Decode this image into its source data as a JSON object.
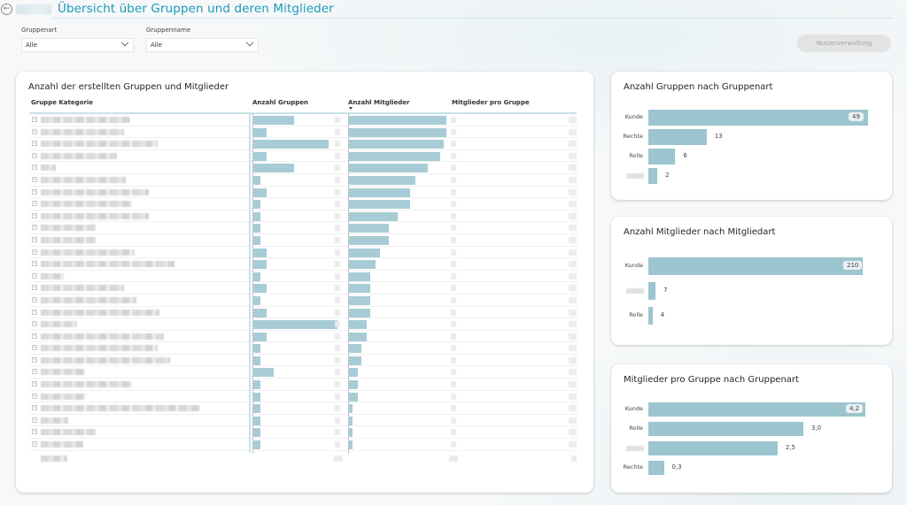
{
  "header": {
    "title": "Übersicht über Gruppen und deren Mitglieder",
    "back_icon": "back-arrow-circle-icon"
  },
  "filters": [
    {
      "label": "Gruppenart",
      "value": "Alle"
    },
    {
      "label": "Gruppenname",
      "value": "Alle"
    }
  ],
  "user_management_button": "Nutzerverwaltung",
  "colors": {
    "accent": "#1a9bbb",
    "bar": "#9cc5cf",
    "table_bar": "#a8ccd6",
    "button_disabled_bg": "#e3e3e3"
  },
  "table": {
    "title": "Anzahl der erstellten Gruppen und Mitglieder",
    "columns": [
      "Gruppe Kategorie",
      "Anzahl Gruppen",
      "Anzahl Mitglieder",
      "Mitglieder pro Gruppe"
    ],
    "sorted_column": "Anzahl Mitglieder",
    "sort_direction": "descending",
    "names_redacted": true,
    "values_redacted": true,
    "rows_relative": {
      "note": "bar lengths relative to column max (0-1)",
      "anzahl_gruppen": [
        0.48,
        0.16,
        0.89,
        0.16,
        0.48,
        0.08,
        0.16,
        0.08,
        0.08,
        0.08,
        0.08,
        0.16,
        0.16,
        0.08,
        0.16,
        0.08,
        0.16,
        1.0,
        0.16,
        0.08,
        0.08,
        0.24,
        0.08,
        0.08,
        0.08,
        0.08,
        0.08,
        0.08
      ],
      "anzahl_mitglieder": [
        1.0,
        1.0,
        0.97,
        0.94,
        0.81,
        0.68,
        0.63,
        0.63,
        0.5,
        0.41,
        0.41,
        0.32,
        0.27,
        0.22,
        0.22,
        0.22,
        0.22,
        0.18,
        0.18,
        0.13,
        0.13,
        0.09,
        0.09,
        0.09,
        0.04,
        0.04,
        0.04,
        0.04
      ]
    },
    "name_widths": [
      0.42,
      0.39,
      0.55,
      0.36,
      0.07,
      0.4,
      0.51,
      0.43,
      0.51,
      0.26,
      0.26,
      0.44,
      0.63,
      0.11,
      0.39,
      0.45,
      0.56,
      0.17,
      0.58,
      0.55,
      0.61,
      0.21,
      0.43,
      0.21,
      0.75,
      0.13,
      0.26,
      0.2
    ]
  },
  "chart_data": [
    {
      "type": "bar",
      "orientation": "horizontal",
      "title": "Anzahl Gruppen nach Gruppenart",
      "categories": [
        "Kunde",
        "Rechte",
        "Rolle",
        "[redacted]"
      ],
      "values": [
        49,
        13,
        6,
        2
      ],
      "value_labels": [
        "49",
        "13",
        "6",
        "2"
      ],
      "xlim": [
        0,
        49
      ]
    },
    {
      "type": "bar",
      "orientation": "horizontal",
      "title": "Anzahl Mitglieder nach Mitgliedart",
      "categories": [
        "Kunde",
        "[redacted]",
        "Rolle"
      ],
      "values": [
        210,
        7,
        4
      ],
      "value_labels": [
        "210",
        "7",
        "4"
      ],
      "xlim": [
        0,
        210
      ]
    },
    {
      "type": "bar",
      "orientation": "horizontal",
      "title": "Mitglieder pro Gruppe nach Gruppenart",
      "categories": [
        "Kunde",
        "Rolle",
        "[redacted]",
        "Rechte"
      ],
      "values": [
        4.2,
        3.0,
        2.5,
        0.3
      ],
      "value_labels": [
        "4,2",
        "3,0",
        "2,5",
        "0,3"
      ],
      "xlim": [
        0,
        4.2
      ]
    }
  ]
}
